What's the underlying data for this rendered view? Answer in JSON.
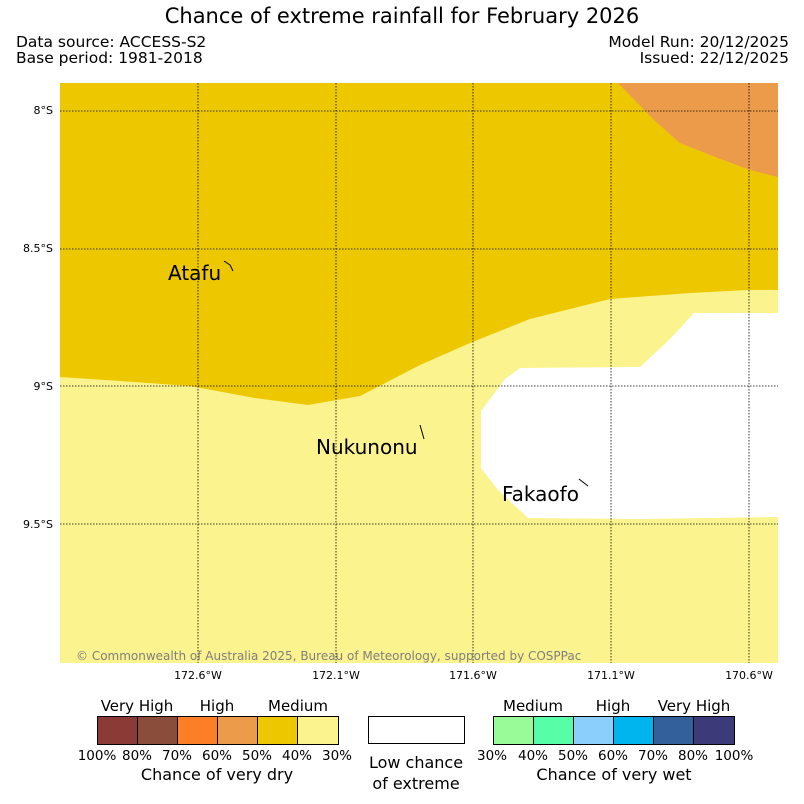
{
  "title": "Chance of extreme rainfall for February 2026",
  "meta": {
    "data_source": "Data source: ACCESS-S2",
    "base_period": "Base period: 1981-2018",
    "model_run": "Model Run: 20/12/2025",
    "issued": "Issued: 22/12/2025"
  },
  "map": {
    "latitude_labels": [
      "8°S",
      "8.5°S",
      "9°S",
      "9.5°S"
    ],
    "longitude_labels": [
      "172.6°W",
      "172.1°W",
      "171.6°W",
      "171.1°W",
      "170.6°W"
    ],
    "places": [
      "Atafu",
      "Nukunonu",
      "Fakaofo"
    ],
    "copyright": "© Commonwealth of Australia 2025, Bureau of Meteorology, supported by COSPPac",
    "colors": {
      "dry_high": "#eb9b4a",
      "dry_medium_40_50": "#edc800",
      "dry_medium_30_40": "#fbf38d",
      "low_chance": "#ffffff",
      "grid": "#000000"
    }
  },
  "legend": {
    "dry": {
      "headings": [
        "Very High",
        "High",
        "Medium"
      ],
      "ticks": [
        "100%",
        "80%",
        "70%",
        "60%",
        "50%",
        "40%",
        "30%"
      ],
      "caption": "Chance of very dry",
      "colors": [
        "#8b3a35",
        "#8a4d3c",
        "#fc7e26",
        "#eb9b4a",
        "#edc800",
        "#fbf38d"
      ]
    },
    "low": {
      "line1": "Low chance",
      "line2": "of extreme",
      "color": "#ffffff"
    },
    "wet": {
      "headings": [
        "Medium",
        "High",
        "Very High"
      ],
      "ticks": [
        "30%",
        "40%",
        "50%",
        "60%",
        "70%",
        "80%",
        "100%"
      ],
      "caption": "Chance of very wet",
      "colors": [
        "#98fb98",
        "#57fda7",
        "#8bcffc",
        "#00b4ee",
        "#33609b",
        "#3d3a7a"
      ]
    }
  }
}
